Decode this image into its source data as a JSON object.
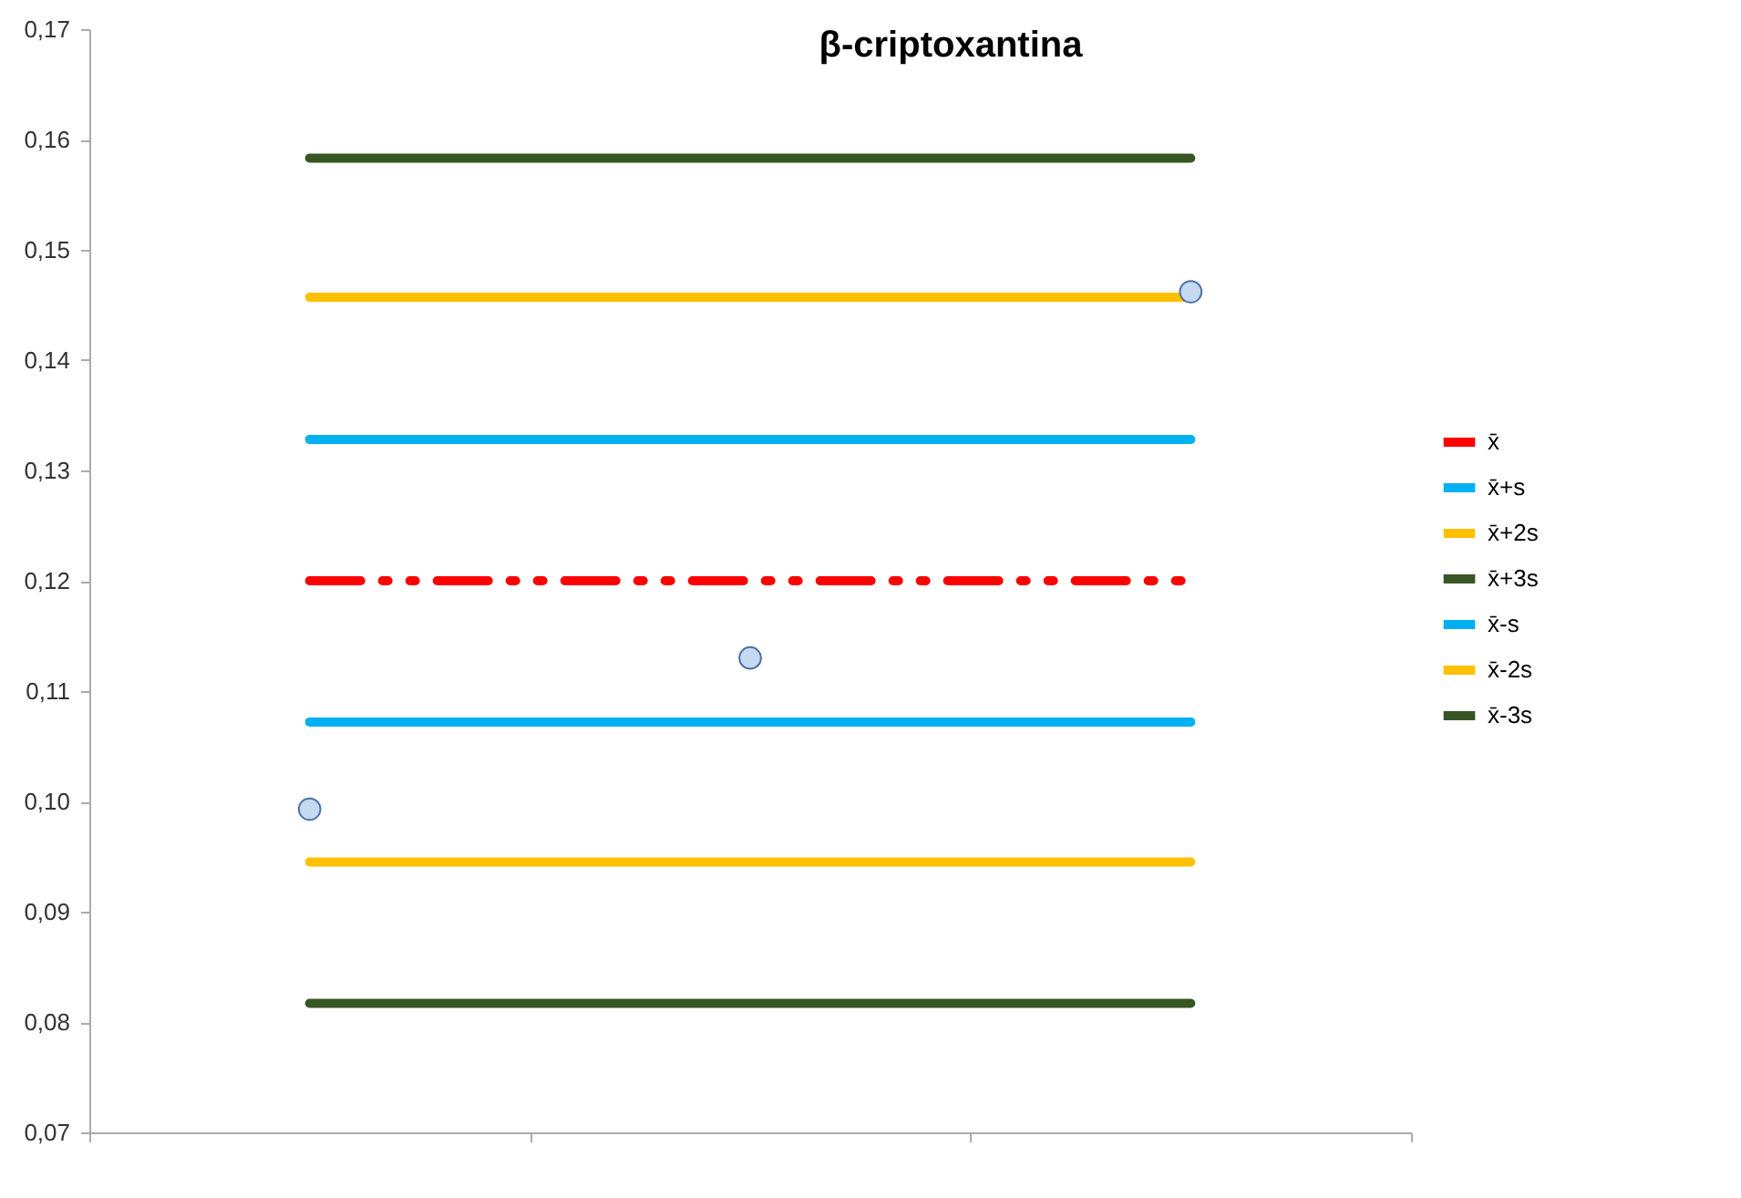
{
  "chart_data": {
    "type": "line",
    "title": "β-criptoxantina",
    "categories": [
      null,
      null,
      null
    ],
    "ylim": [
      0.07,
      0.17
    ],
    "yticks": [
      {
        "value": 0.07,
        "label": "0,07"
      },
      {
        "value": 0.08,
        "label": "0,08"
      },
      {
        "value": 0.09,
        "label": "0,09"
      },
      {
        "value": 0.1,
        "label": "0,10"
      },
      {
        "value": 0.11,
        "label": "0,11"
      },
      {
        "value": 0.12,
        "label": "0,12"
      },
      {
        "value": 0.13,
        "label": "0,13"
      },
      {
        "value": 0.14,
        "label": "0,14"
      },
      {
        "value": 0.15,
        "label": "0,15"
      },
      {
        "value": 0.16,
        "label": "0,16"
      },
      {
        "value": 0.17,
        "label": "0,17"
      }
    ],
    "tick_labels": "y",
    "legend": "right",
    "grid": false,
    "series": [
      {
        "name": "x̄",
        "color": "#ff0000",
        "line_style": "dashed",
        "values": [
          0.12,
          0.12,
          0.12
        ]
      },
      {
        "name": "x̄+s",
        "color": "#00b0f0",
        "values": [
          0.1328,
          0.1328,
          0.1328
        ]
      },
      {
        "name": "x̄+2s",
        "color": "#ffc000",
        "values": [
          0.1457,
          0.1457,
          0.1457
        ]
      },
      {
        "name": "x̄+3s",
        "color": "#375623",
        "values": [
          0.1583,
          0.1583,
          0.1583
        ]
      },
      {
        "name": "x̄-s",
        "color": "#00b0f0",
        "values": [
          0.1072,
          0.1072,
          0.1072
        ]
      },
      {
        "name": "x̄-2s",
        "color": "#ffc000",
        "values": [
          0.0945,
          0.0945,
          0.0945
        ]
      },
      {
        "name": "x̄-3s",
        "color": "#375623",
        "values": [
          0.0817,
          0.0817,
          0.0817
        ]
      },
      {
        "type": "scatter",
        "color": "#c5d9f1",
        "marker": "circle",
        "values": [
          0.0993,
          0.113,
          0.1462
        ]
      }
    ]
  }
}
